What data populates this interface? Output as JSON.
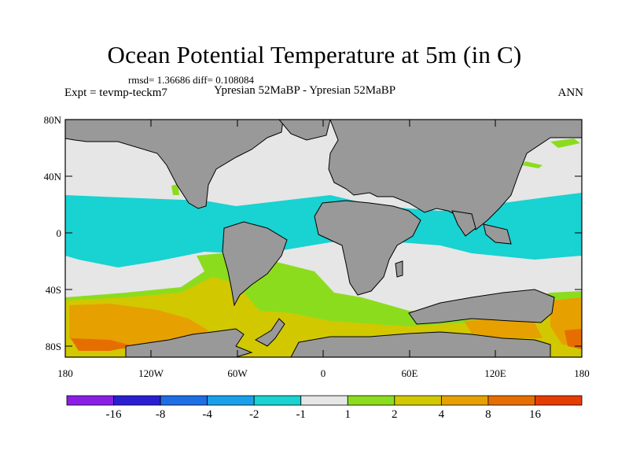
{
  "title": "Ocean Potential Temperature at 5m (in C)",
  "stats_line": "rmsd= 1.36686 diff= 0.108084",
  "left_label": "Expt = tevmp-teckm7",
  "center_label": "Ypresian  52MaBP - Ypresian  52MaBP",
  "right_label": "ANN",
  "y_ticks": [
    "80N",
    "40N",
    "0",
    "40S",
    "80S"
  ],
  "x_ticks": [
    "180",
    "120W",
    "60W",
    "0",
    "60E",
    "120E",
    "180"
  ],
  "colorbar": {
    "labels": [
      "-16",
      "-8",
      "-4",
      "-2",
      "-1",
      "1",
      "2",
      "4",
      "8",
      "16"
    ],
    "colors": [
      "#8a1ee6",
      "#2a1ed2",
      "#1e6ee6",
      "#19a0eb",
      "#19d2d2",
      "#e6e6e6",
      "#8cdc1e",
      "#d2c800",
      "#e6a000",
      "#e66e00",
      "#e63c00"
    ]
  },
  "colors": {
    "land": "#999999",
    "ocean_neutral": "#e6e6e6",
    "cyan": "#19d2d2",
    "green": "#8cdc1e",
    "yellow": "#d2c800",
    "orange": "#e6a000",
    "dark_orange": "#e66e00"
  }
}
